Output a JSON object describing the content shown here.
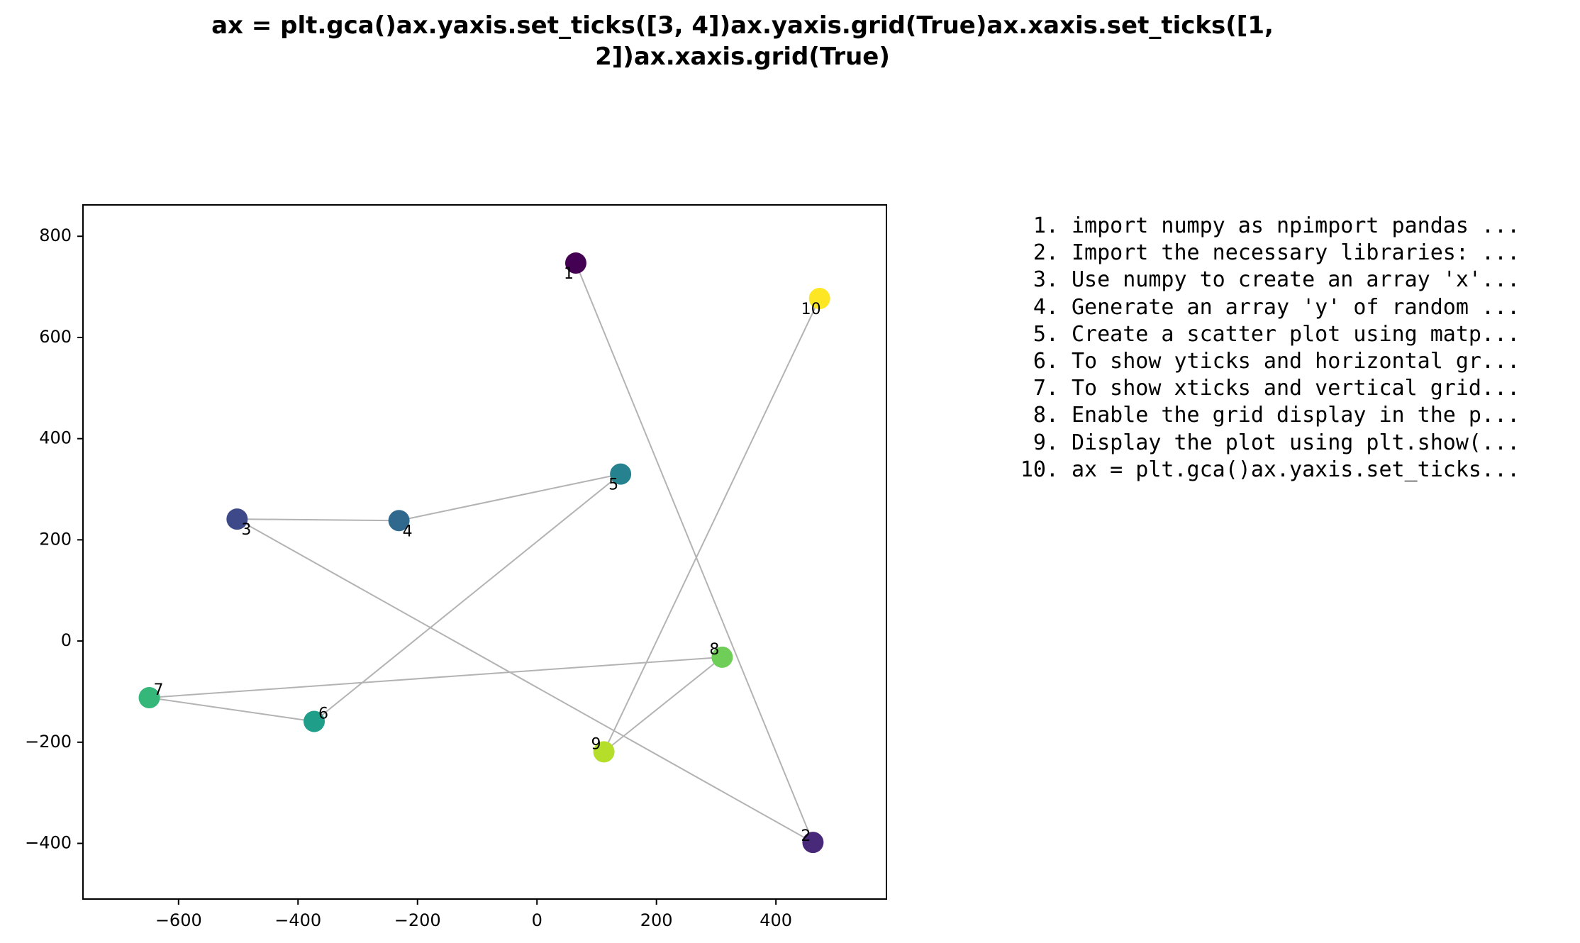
{
  "chart_data": {
    "type": "scatter",
    "title_lines": [
      "ax = plt.gca()ax.yaxis.set_ticks([3, 4])ax.yaxis.grid(True)ax.xaxis.set_ticks([1,",
      "2])ax.xaxis.grid(True)"
    ],
    "xlim": [
      -760,
      585
    ],
    "ylim": [
      -510,
      862
    ],
    "xticks": [
      -600,
      -400,
      -200,
      0,
      200,
      400
    ],
    "yticks": [
      -400,
      -200,
      0,
      200,
      400,
      600,
      800
    ],
    "xtick_labels": [
      "−600",
      "−400",
      "−200",
      "0",
      "200",
      "400"
    ],
    "ytick_labels": [
      "−400",
      "−200",
      "0",
      "200",
      "400",
      "600",
      "800"
    ],
    "grid": false,
    "connect_points_in_order": true,
    "colormap": "viridis",
    "points": [
      {
        "label": "1",
        "x": 65,
        "y": 747,
        "color": "#440154"
      },
      {
        "label": "2",
        "x": 462,
        "y": -398,
        "color": "#482878"
      },
      {
        "label": "3",
        "x": -502,
        "y": 241,
        "color": "#3e4989"
      },
      {
        "label": "4",
        "x": -231,
        "y": 238,
        "color": "#31688e"
      },
      {
        "label": "5",
        "x": 140,
        "y": 330,
        "color": "#26828e"
      },
      {
        "label": "6",
        "x": -373,
        "y": -159,
        "color": "#1f9e89"
      },
      {
        "label": "7",
        "x": -649,
        "y": -112,
        "color": "#35b779"
      },
      {
        "label": "8",
        "x": 310,
        "y": -32,
        "color": "#6ece58"
      },
      {
        "label": "9",
        "x": 112,
        "y": -219,
        "color": "#b5de2b"
      },
      {
        "label": "10",
        "x": 473,
        "y": 677,
        "color": "#fde725"
      }
    ],
    "line_color": "#b3b3b3"
  },
  "steps": [
    {
      "num": "1.",
      "text": "import numpy as npimport pandas ..."
    },
    {
      "num": "2.",
      "text": "Import the necessary libraries: ..."
    },
    {
      "num": "3.",
      "text": "Use numpy to create an array 'x'..."
    },
    {
      "num": "4.",
      "text": "Generate an array 'y' of random ..."
    },
    {
      "num": "5.",
      "text": "Create a scatter plot using matp..."
    },
    {
      "num": "6.",
      "text": "To show yticks and horizontal gr..."
    },
    {
      "num": "7.",
      "text": "To show xticks and vertical grid..."
    },
    {
      "num": "8.",
      "text": "Enable the grid display in the p..."
    },
    {
      "num": "9.",
      "text": "Display the plot using plt.show(..."
    },
    {
      "num": "10.",
      "text": "ax = plt.gca()ax.yaxis.set_ticks..."
    }
  ]
}
